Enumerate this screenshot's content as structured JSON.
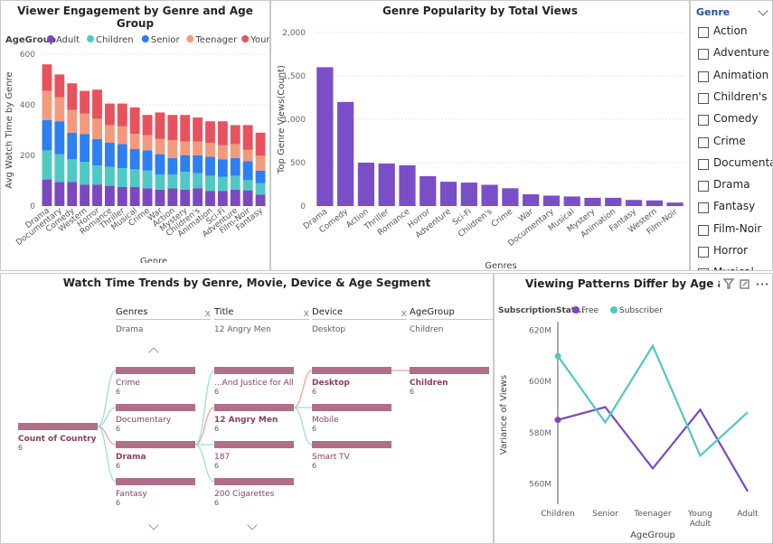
{
  "colors": {
    "adult": "#7b48c2",
    "children": "#4fc9c3",
    "senior": "#2e7ff1",
    "teenager": "#f49a7c",
    "young_adult": "#e8525e",
    "bar": "#7a4ec6",
    "line_free": "#7b48c2",
    "line_subscriber": "#4fc9c3",
    "node": "#b06e8b"
  },
  "chart1": {
    "title": "Viewer Engagement by Genre and Age Group",
    "legend_title": "AgeGroup",
    "chart_data": {
      "type": "bar",
      "stacked": true,
      "categories": [
        "Drama",
        "Documentary",
        "Comedy",
        "Western",
        "Horror",
        "Romance",
        "Thriller",
        "Musical",
        "Crime",
        "War",
        "Action",
        "Mystery",
        "Children's",
        "Animation",
        "Sci-Fi",
        "Adventure",
        "Film-Noir",
        "Fantasy"
      ],
      "series": [
        {
          "name": "Adult",
          "values": [
            105,
            95,
            95,
            85,
            85,
            80,
            75,
            75,
            70,
            65,
            70,
            65,
            70,
            60,
            60,
            65,
            62,
            45
          ]
        },
        {
          "name": "Children",
          "values": [
            115,
            110,
            90,
            90,
            75,
            75,
            75,
            70,
            70,
            60,
            55,
            70,
            60,
            60,
            55,
            55,
            40,
            45
          ]
        },
        {
          "name": "Senior",
          "values": [
            120,
            130,
            105,
            110,
            105,
            95,
            95,
            80,
            80,
            80,
            65,
            65,
            70,
            75,
            70,
            70,
            75,
            50
          ]
        },
        {
          "name": "Teenager",
          "values": [
            115,
            95,
            90,
            80,
            80,
            70,
            70,
            60,
            60,
            60,
            70,
            55,
            55,
            55,
            55,
            55,
            45,
            60
          ]
        },
        {
          "name": "Young Adult",
          "values": [
            105,
            90,
            105,
            90,
            115,
            85,
            90,
            105,
            80,
            105,
            100,
            105,
            95,
            85,
            95,
            75,
            98,
            90
          ]
        }
      ],
      "ylabel": "Avg Watch Time by Genre",
      "xlabel": "Genre",
      "ylim": [
        0,
        600
      ],
      "yticks": [
        0,
        200,
        400,
        600
      ],
      "legend": "top"
    }
  },
  "chart2": {
    "title": "Genre Popularity by Total Views",
    "chart_data": {
      "type": "bar",
      "categories": [
        "Drama",
        "Comedy",
        "Action",
        "Thriller",
        "Romance",
        "Horror",
        "Adventure",
        "Sci-Fi",
        "Children's",
        "Crime",
        "War",
        "Documentary",
        "Musical",
        "Mystery",
        "Animation",
        "Fantasy",
        "Western",
        "Film-Noir"
      ],
      "values": [
        1600,
        1200,
        500,
        490,
        470,
        345,
        280,
        270,
        245,
        205,
        135,
        120,
        110,
        95,
        95,
        70,
        65,
        40
      ],
      "ylabel": "Top Genre Views(Count)",
      "xlabel": "Genres",
      "ylim": [
        0,
        2000
      ],
      "yticks": [
        0,
        500,
        1000,
        1500,
        2000
      ],
      "ytick_labels": [
        "0",
        "500",
        "1,000",
        "1,500",
        "2,000"
      ]
    }
  },
  "slicer": {
    "title": "Genre",
    "items": [
      "Action",
      "Adventure",
      "Animation",
      "Children's",
      "Comedy",
      "Crime",
      "Documentary",
      "Drama",
      "Fantasy",
      "Film-Noir",
      "Horror",
      "Musical"
    ]
  },
  "tree": {
    "title": "Watch Time Trends by Genre, Movie, Device & Age Segment",
    "levels": [
      {
        "name": "Genres",
        "selected": "Drama"
      },
      {
        "name": "Title",
        "selected": "12 Angry Men"
      },
      {
        "name": "Device",
        "selected": "Desktop"
      },
      {
        "name": "AgeGroup",
        "selected": "Children"
      }
    ],
    "root": {
      "label": "Count of Country",
      "value": "6"
    },
    "col1": [
      {
        "label": "Crime",
        "value": "6"
      },
      {
        "label": "Documentary",
        "value": "6"
      },
      {
        "label": "Drama",
        "value": "6"
      },
      {
        "label": "Fantasy",
        "value": "6"
      }
    ],
    "col2": [
      {
        "label": "...And Justice for All",
        "value": "6"
      },
      {
        "label": "12 Angry Men",
        "value": "6"
      },
      {
        "label": "187",
        "value": "6"
      },
      {
        "label": "200 Cigarettes",
        "value": "6"
      }
    ],
    "col3": [
      {
        "label": "Desktop",
        "value": "6"
      },
      {
        "label": "Mobile",
        "value": "6"
      },
      {
        "label": "Smart TV",
        "value": "6"
      }
    ],
    "col4": [
      {
        "label": "Children",
        "value": "6"
      }
    ],
    "close_glyph": "x",
    "scroll_up": "^",
    "scroll_down": "v"
  },
  "chart3": {
    "title": "Viewing Patterns Differ by Age and Subscrip",
    "legend_title": "SubscriptionStat...",
    "chart_data": {
      "type": "line",
      "x": [
        "Children",
        "Senior",
        "Teenager",
        "Young Adult",
        "Adult"
      ],
      "series": [
        {
          "name": "Free",
          "values": [
            585,
            590,
            566,
            589,
            557
          ]
        },
        {
          "name": "Subscriber",
          "values": [
            610,
            584,
            614,
            571,
            588
          ]
        }
      ],
      "ylabel": "Variance of Views",
      "xlabel": "AgeGroup",
      "ylim": [
        552,
        622
      ],
      "yticks": [
        560,
        580,
        600,
        620
      ],
      "ytick_labels": [
        "560M",
        "580M",
        "600M",
        "620M"
      ]
    }
  }
}
